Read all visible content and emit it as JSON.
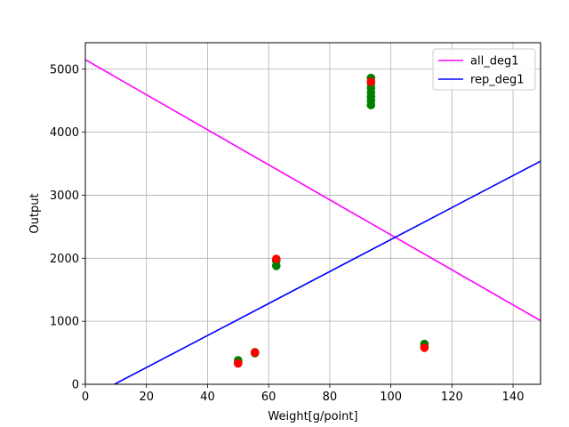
{
  "chart_data": {
    "type": "scatter",
    "xlabel": "Weight[g/point]",
    "ylabel": "Output",
    "xlim": [
      0,
      149
    ],
    "ylim": [
      0,
      5420
    ],
    "xticks": [
      0,
      20,
      40,
      60,
      80,
      100,
      120,
      140
    ],
    "yticks": [
      0,
      1000,
      2000,
      3000,
      4000,
      5000
    ],
    "grid": true,
    "legend_position": "upper-right",
    "scatter_series": [
      {
        "color": "#008000",
        "points": [
          [
            50,
            380
          ],
          [
            50,
            340
          ],
          [
            55.5,
            510
          ],
          [
            55.5,
            495
          ],
          [
            62.5,
            1880
          ],
          [
            62.5,
            1960
          ],
          [
            93.5,
            4430
          ],
          [
            93.5,
            4500
          ],
          [
            93.5,
            4560
          ],
          [
            93.5,
            4630
          ],
          [
            93.5,
            4700
          ],
          [
            93.5,
            4770
          ],
          [
            93.5,
            4860
          ],
          [
            111,
            640
          ],
          [
            111,
            600
          ]
        ]
      },
      {
        "color": "#ff0000",
        "points": [
          [
            50,
            330
          ],
          [
            55.5,
            505
          ],
          [
            62.5,
            1990
          ],
          [
            93.5,
            4800
          ],
          [
            111,
            580
          ]
        ]
      }
    ],
    "series": [
      {
        "name": "all_deg1",
        "color": "#ff00ff",
        "type": "line",
        "x": [
          0,
          149
        ],
        "y": [
          5150,
          1010
        ]
      },
      {
        "name": "rep_deg1",
        "color": "#0000ff",
        "type": "line",
        "x": [
          9.5,
          149
        ],
        "y": [
          0,
          3540
        ]
      }
    ]
  }
}
